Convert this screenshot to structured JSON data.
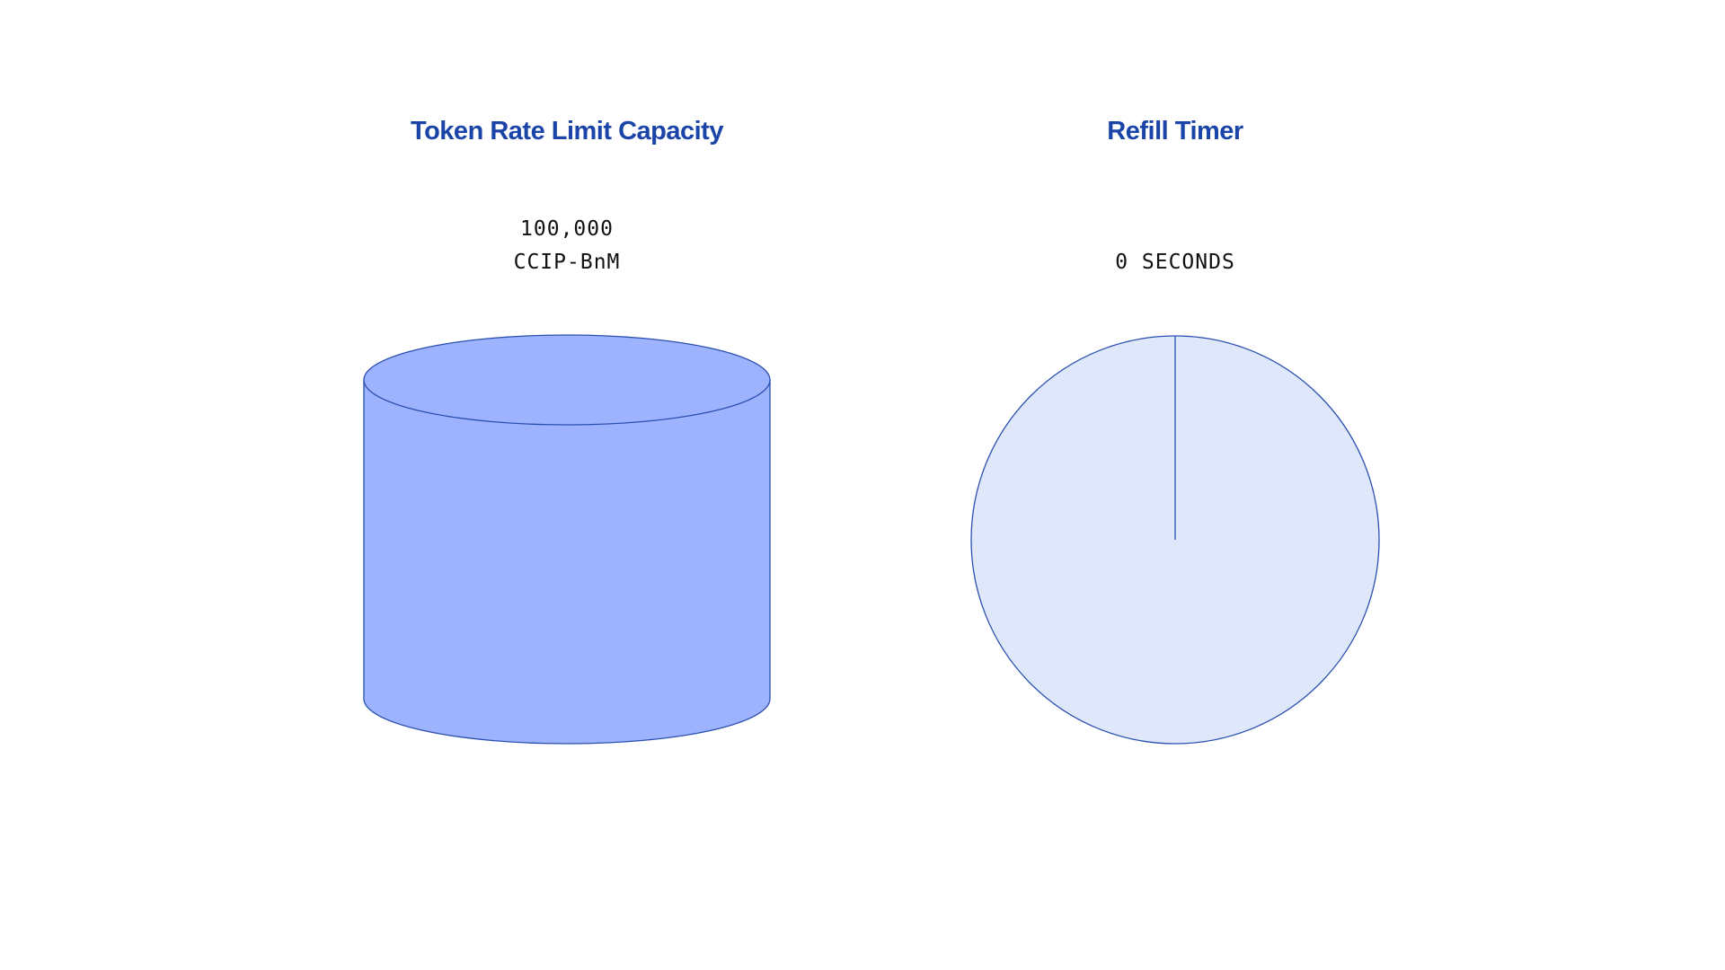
{
  "capacity": {
    "title": "Token Rate Limit Capacity",
    "amount": "100,000",
    "token": "CCIP-BnM",
    "fill_fraction": 1.0,
    "fill_color": "#9db3fd",
    "stroke_color": "#2a4fb0"
  },
  "refill": {
    "title": "Refill Timer",
    "value": "0 SECONDS",
    "elapsed_fraction": 0,
    "fill_color": "#dfe8fb",
    "stroke_color": "#2a4fb0"
  }
}
